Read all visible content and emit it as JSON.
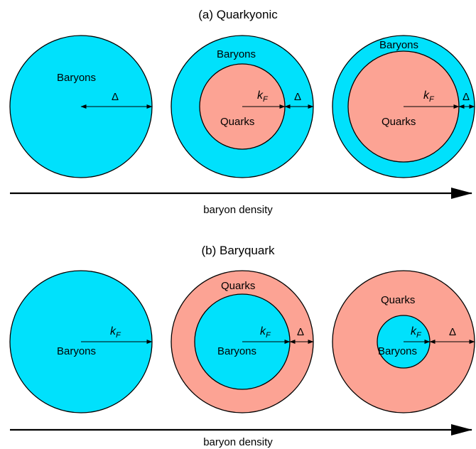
{
  "colors": {
    "baryons": "#00e1fc",
    "quarks": "#fca394",
    "outline": "#000000"
  },
  "panel_a": {
    "title": "(a) Quarkyonic",
    "axis_label": "baryon density",
    "stage1": {
      "baryons": "Baryons",
      "delta": "Δ"
    },
    "stage2": {
      "baryons": "Baryons",
      "quarks": "Quarks",
      "kf_main": "k",
      "kf_sub": "F",
      "delta": "Δ"
    },
    "stage3": {
      "baryons": "Baryons",
      "quarks": "Quarks",
      "kf_main": "k",
      "kf_sub": "F",
      "delta": "Δ"
    }
  },
  "panel_b": {
    "title": "(b) Baryquark",
    "axis_label": "baryon density",
    "stage1": {
      "baryons": "Baryons",
      "kf_main": "k",
      "kf_sub": "F"
    },
    "stage2": {
      "baryons": "Baryons",
      "quarks": "Quarks",
      "kf_main": "k",
      "kf_sub": "F",
      "delta": "Δ"
    },
    "stage3": {
      "baryons": "Baryons",
      "quarks": "Quarks",
      "kf_main": "k",
      "kf_sub": "F",
      "delta": "Δ"
    }
  }
}
